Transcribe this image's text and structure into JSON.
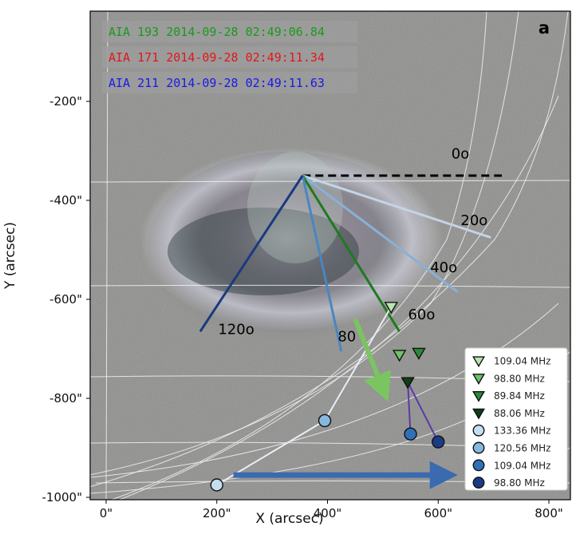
{
  "chart_data": {
    "type": "scatter",
    "panel_label": "a",
    "xlabel": "X (arcsec)",
    "ylabel": "Y (arcsec)",
    "xlim": [
      -20,
      850
    ],
    "ylim": [
      -1020,
      20
    ],
    "x_ticks": [
      {
        "value": 0,
        "label": "0\""
      },
      {
        "value": 200,
        "label": "200\""
      },
      {
        "value": 400,
        "label": "400\""
      },
      {
        "value": 600,
        "label": "600\""
      },
      {
        "value": 800,
        "label": "800\""
      }
    ],
    "y_ticks": [
      {
        "value": -200,
        "label": "-200\""
      },
      {
        "value": -400,
        "label": "-400\""
      },
      {
        "value": -600,
        "label": "-600\""
      },
      {
        "value": -800,
        "label": "-800\""
      },
      {
        "value": -1000,
        "label": "-1000\""
      }
    ],
    "header_labels": [
      {
        "text": "AIA 193 2014-09-28 02:49:06.84",
        "color": "#1a9a1a"
      },
      {
        "text": "AIA 171 2014-09-28 02:49:11.34",
        "color": "#e01818"
      },
      {
        "text": "AIA 211 2014-09-28 02:49:11.63",
        "color": "#1a1ae8"
      }
    ],
    "flare_origin": {
      "x": 355,
      "y": -350
    },
    "rays": [
      {
        "angle_label": "0o",
        "end": {
          "x": 715,
          "y": -350
        },
        "color": "#000000",
        "dashed": true
      },
      {
        "angle_label": "20o",
        "end": {
          "x": 695,
          "y": -475
        },
        "color": "#c4d4e8",
        "dashed": false
      },
      {
        "angle_label": "40o",
        "end": {
          "x": 635,
          "y": -585
        },
        "color": "#8ab0d6",
        "dashed": false
      },
      {
        "angle_label": "60o",
        "end": {
          "x": 530,
          "y": -665
        },
        "color": "#1f7a1f",
        "dashed": false
      },
      {
        "angle_label": "80",
        "end": {
          "x": 425,
          "y": -705
        },
        "color": "#4a86c0",
        "dashed": false
      },
      {
        "angle_label": "120o",
        "end": {
          "x": 170,
          "y": -665
        },
        "color": "#1a3a80",
        "dashed": false
      }
    ],
    "angle_label_positions": [
      {
        "text": "0o",
        "x": 640,
        "y": -315
      },
      {
        "text": "20o",
        "x": 665,
        "y": -450
      },
      {
        "text": "40o",
        "x": 610,
        "y": -545
      },
      {
        "text": "60o",
        "x": 570,
        "y": -640
      },
      {
        "text": "80",
        "x": 435,
        "y": -685
      },
      {
        "text": "120o",
        "x": 235,
        "y": -670
      }
    ],
    "series": [
      {
        "name": "109.04 MHz",
        "marker": "triangle",
        "color": "#b8e6b0",
        "x": 515,
        "y": -615
      },
      {
        "name": "98.80 MHz",
        "marker": "triangle",
        "color": "#6cc26a",
        "x": 530,
        "y": -712
      },
      {
        "name": "89.84 MHz",
        "marker": "triangle",
        "color": "#2a8c3a",
        "x": 565,
        "y": -708
      },
      {
        "name": "88.06 MHz",
        "marker": "triangle",
        "color": "#0e3e16",
        "x": 545,
        "y": -767
      },
      {
        "name": "133.36 MHz",
        "marker": "circle",
        "color": "#c4dff0",
        "x": 200,
        "y": -975
      },
      {
        "name": "120.56 MHz",
        "marker": "circle",
        "color": "#86b8de",
        "x": 395,
        "y": -845
      },
      {
        "name": "109.04 MHz",
        "marker": "circle",
        "color": "#3070b8",
        "x": 550,
        "y": -872
      },
      {
        "name": "98.80 MHz",
        "marker": "circle",
        "color": "#1a3c86",
        "x": 600,
        "y": -888
      }
    ],
    "connecting_lines": [
      {
        "from": {
          "x": 200,
          "y": -975
        },
        "to": {
          "x": 395,
          "y": -845
        },
        "color": "#e8eef6"
      },
      {
        "from": {
          "x": 395,
          "y": -845
        },
        "to": {
          "x": 515,
          "y": -615
        },
        "color": "#e8eef6"
      },
      {
        "from": {
          "x": 545,
          "y": -767
        },
        "to": {
          "x": 550,
          "y": -872
        },
        "color": "#5a3aa8"
      },
      {
        "from": {
          "x": 545,
          "y": -767
        },
        "to": {
          "x": 600,
          "y": -888
        },
        "color": "#5a3aa8"
      }
    ],
    "arrows": [
      {
        "from": {
          "x": 450,
          "y": -640
        },
        "to": {
          "x": 500,
          "y": -780
        },
        "color": "#7ac560"
      },
      {
        "from": {
          "x": 230,
          "y": -955
        },
        "to": {
          "x": 610,
          "y": -955
        },
        "color": "#3a6ab0"
      }
    ],
    "legend": {
      "placement": "bottom-right"
    },
    "grid": true
  }
}
